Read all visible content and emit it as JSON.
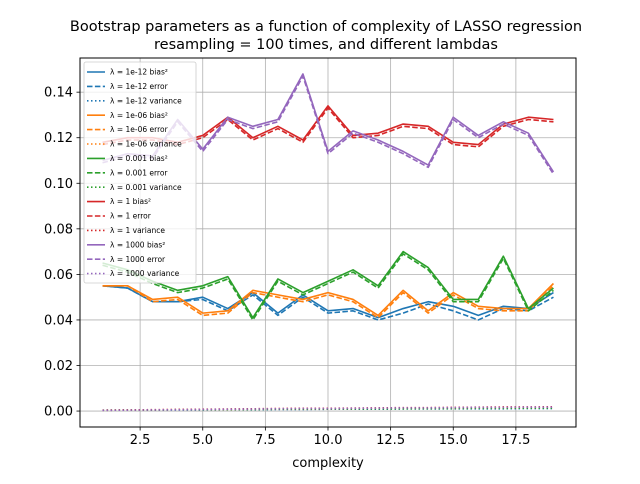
{
  "chart_data": {
    "type": "line",
    "title_line1": "Bootstrap parameters as a function of complexity of LASSO regression",
    "title_line2": "resampling = 100 times, and different lambdas",
    "xlabel": "complexity",
    "ylabel": "",
    "xlim": [
      0.1,
      19.9
    ],
    "ylim": [
      -0.007,
      0.155
    ],
    "xticks": [
      2.5,
      5.0,
      7.5,
      10.0,
      12.5,
      15.0,
      17.5
    ],
    "xtick_labels": [
      "2.5",
      "5.0",
      "7.5",
      "10.0",
      "12.5",
      "15.0",
      "17.5"
    ],
    "yticks": [
      0.0,
      0.02,
      0.04,
      0.06,
      0.08,
      0.1,
      0.12,
      0.14
    ],
    "ytick_labels": [
      "0.00",
      "0.02",
      "0.04",
      "0.06",
      "0.08",
      "0.10",
      "0.12",
      "0.14"
    ],
    "grid": true,
    "legend_position": "upper-left",
    "x": [
      1,
      2,
      3,
      4,
      5,
      6,
      7,
      8,
      9,
      10,
      11,
      12,
      13,
      14,
      15,
      16,
      17,
      18,
      19
    ],
    "series": [
      {
        "name": "λ = 1e-12 bias²",
        "color": "#1f77b4",
        "style": "solid",
        "values": [
          0.055,
          0.054,
          0.048,
          0.048,
          0.05,
          0.045,
          0.052,
          0.043,
          0.051,
          0.044,
          0.045,
          0.041,
          0.045,
          0.048,
          0.046,
          0.042,
          0.046,
          0.045,
          0.052
        ]
      },
      {
        "name": "λ = 1e-12 error",
        "color": "#1f77b4",
        "style": "dashed",
        "values": [
          0.055,
          0.054,
          0.048,
          0.048,
          0.049,
          0.044,
          0.051,
          0.042,
          0.05,
          0.043,
          0.044,
          0.04,
          0.043,
          0.047,
          0.044,
          0.04,
          0.045,
          0.044,
          0.05
        ]
      },
      {
        "name": "λ = 1e-12 variance",
        "color": "#1f77b4",
        "style": "dotted",
        "values": [
          0.0003,
          0.0004,
          0.0004,
          0.0005,
          0.0005,
          0.0006,
          0.0006,
          0.0007,
          0.0007,
          0.0008,
          0.0008,
          0.0008,
          0.0009,
          0.0009,
          0.001,
          0.001,
          0.001,
          0.0011,
          0.0011
        ]
      },
      {
        "name": "λ = 1e-06 bias²",
        "color": "#ff7f0e",
        "style": "solid",
        "values": [
          0.055,
          0.055,
          0.049,
          0.05,
          0.043,
          0.044,
          0.053,
          0.051,
          0.049,
          0.052,
          0.049,
          0.042,
          0.053,
          0.044,
          0.052,
          0.046,
          0.045,
          0.045,
          0.056
        ]
      },
      {
        "name": "λ = 1e-06 error",
        "color": "#ff7f0e",
        "style": "dashed",
        "values": [
          0.055,
          0.055,
          0.048,
          0.049,
          0.042,
          0.043,
          0.052,
          0.05,
          0.048,
          0.051,
          0.048,
          0.041,
          0.052,
          0.043,
          0.051,
          0.045,
          0.044,
          0.044,
          0.055
        ]
      },
      {
        "name": "λ = 1e-06 variance",
        "color": "#ff7f0e",
        "style": "dotted",
        "values": [
          0.0003,
          0.0004,
          0.0005,
          0.0006,
          0.0006,
          0.0007,
          0.0008,
          0.0009,
          0.0009,
          0.001,
          0.001,
          0.0011,
          0.0012,
          0.0012,
          0.0013,
          0.0013,
          0.0014,
          0.0014,
          0.0015
        ]
      },
      {
        "name": "λ = 0.001 bias²",
        "color": "#2ca02c",
        "style": "solid",
        "values": [
          0.065,
          0.062,
          0.057,
          0.053,
          0.055,
          0.059,
          0.041,
          0.058,
          0.052,
          0.057,
          0.062,
          0.055,
          0.07,
          0.063,
          0.049,
          0.049,
          0.068,
          0.045,
          0.054
        ]
      },
      {
        "name": "λ = 0.001 error",
        "color": "#2ca02c",
        "style": "dashed",
        "values": [
          0.064,
          0.061,
          0.056,
          0.052,
          0.054,
          0.058,
          0.04,
          0.057,
          0.051,
          0.056,
          0.061,
          0.054,
          0.069,
          0.062,
          0.048,
          0.048,
          0.067,
          0.044,
          0.053
        ]
      },
      {
        "name": "λ = 0.001 variance",
        "color": "#2ca02c",
        "style": "dotted",
        "values": [
          0.0004,
          0.0005,
          0.0005,
          0.0006,
          0.0006,
          0.0007,
          0.0007,
          0.0008,
          0.0008,
          0.0009,
          0.0009,
          0.001,
          0.001,
          0.0011,
          0.0011,
          0.0012,
          0.0012,
          0.0013,
          0.0013
        ]
      },
      {
        "name": "λ = 1 bias²",
        "color": "#d62728",
        "style": "solid",
        "values": [
          0.118,
          0.12,
          0.12,
          0.118,
          0.121,
          0.129,
          0.12,
          0.125,
          0.119,
          0.134,
          0.121,
          0.122,
          0.126,
          0.125,
          0.118,
          0.117,
          0.126,
          0.129,
          0.128
        ]
      },
      {
        "name": "λ = 1 error",
        "color": "#d62728",
        "style": "dashed",
        "values": [
          0.117,
          0.119,
          0.119,
          0.117,
          0.12,
          0.128,
          0.119,
          0.124,
          0.118,
          0.133,
          0.12,
          0.121,
          0.125,
          0.124,
          0.117,
          0.116,
          0.125,
          0.128,
          0.127
        ]
      },
      {
        "name": "λ = 1 variance",
        "color": "#d62728",
        "style": "dotted",
        "values": [
          0.0004,
          0.0005,
          0.0006,
          0.0007,
          0.0008,
          0.0009,
          0.001,
          0.0011,
          0.0012,
          0.0012,
          0.0013,
          0.0014,
          0.0015,
          0.0015,
          0.0016,
          0.0017,
          0.0018,
          0.0018,
          0.0019
        ]
      },
      {
        "name": "λ = 1000 bias²",
        "color": "#9467bd",
        "style": "solid",
        "values": [
          0.11,
          0.113,
          0.112,
          0.128,
          0.115,
          0.129,
          0.125,
          0.128,
          0.148,
          0.114,
          0.123,
          0.119,
          0.114,
          0.108,
          0.129,
          0.121,
          0.127,
          0.122,
          0.105
        ]
      },
      {
        "name": "λ = 1000 error",
        "color": "#9467bd",
        "style": "dashed",
        "values": [
          0.109,
          0.112,
          0.111,
          0.127,
          0.114,
          0.128,
          0.124,
          0.127,
          0.147,
          0.113,
          0.122,
          0.118,
          0.113,
          0.107,
          0.128,
          0.12,
          0.126,
          0.121,
          0.104
        ]
      },
      {
        "name": "λ = 1000 variance",
        "color": "#9467bd",
        "style": "dotted",
        "values": [
          0.0003,
          0.0004,
          0.0005,
          0.0006,
          0.0007,
          0.0008,
          0.0009,
          0.001,
          0.0011,
          0.0011,
          0.0012,
          0.0013,
          0.0014,
          0.0014,
          0.0015,
          0.0016,
          0.0016,
          0.0017,
          0.0017
        ]
      }
    ]
  }
}
